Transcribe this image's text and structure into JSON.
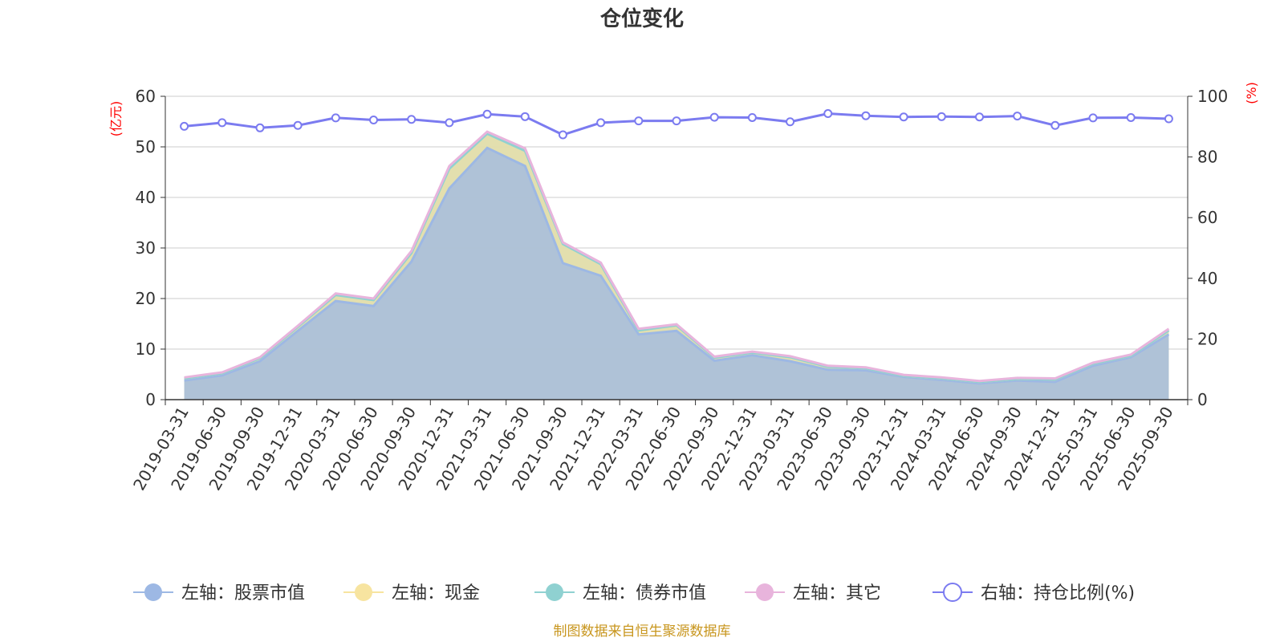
{
  "chart_data": {
    "type": "area",
    "title": "仓位变化",
    "x": [
      "2019-03-31",
      "2019-06-30",
      "2019-09-30",
      "2019-12-31",
      "2020-03-31",
      "2020-06-30",
      "2020-09-30",
      "2020-12-31",
      "2021-03-31",
      "2021-06-30",
      "2021-09-30",
      "2021-12-31",
      "2022-03-31",
      "2022-06-30",
      "2022-09-30",
      "2022-12-31",
      "2023-03-31",
      "2023-06-30",
      "2023-09-30",
      "2023-12-31",
      "2024-03-31",
      "2024-06-30",
      "2024-09-30",
      "2024-12-31",
      "2025-03-31",
      "2025-06-30",
      "2025-09-30"
    ],
    "left_axis": {
      "unit_label": "(亿元)",
      "ylim": [
        0,
        60
      ],
      "ticks": [
        "0",
        "10",
        "20",
        "30",
        "40",
        "50",
        "60"
      ]
    },
    "right_axis": {
      "unit_label": "(%)",
      "ylim": [
        0,
        100
      ],
      "ticks": [
        "0",
        "20",
        "40",
        "60",
        "80",
        "100"
      ]
    },
    "series": [
      {
        "name": "左轴：股票市值",
        "axis": "left",
        "type": "area",
        "stack": true,
        "color": "#9db8e4",
        "values": [
          3.8,
          4.8,
          7.6,
          13.6,
          19.5,
          18.5,
          27.3,
          41.8,
          49.8,
          46.2,
          27.0,
          24.5,
          12.9,
          13.6,
          7.7,
          8.8,
          7.6,
          5.9,
          5.8,
          4.5,
          3.9,
          3.2,
          3.8,
          3.5,
          6.7,
          8.4,
          12.9
        ]
      },
      {
        "name": "左轴：现金",
        "axis": "left",
        "type": "area",
        "stack": true,
        "color": "#f7e4a0",
        "values": [
          0.4,
          0.4,
          0.6,
          0.8,
          1.2,
          1.2,
          1.7,
          3.9,
          2.8,
          3.0,
          3.8,
          2.3,
          0.8,
          1.1,
          0.6,
          0.5,
          0.8,
          0.6,
          0.4,
          0.2,
          0.3,
          0.3,
          0.3,
          0.5,
          0.4,
          0.3,
          0.8
        ]
      },
      {
        "name": "左轴：债券市值",
        "axis": "left",
        "type": "area",
        "stack": true,
        "color": "#8fd1d1",
        "values": [
          0,
          0,
          0,
          0,
          0,
          0,
          0,
          0,
          0,
          0,
          0,
          0,
          0,
          0,
          0,
          0,
          0,
          0,
          0,
          0,
          0,
          0,
          0,
          0,
          0,
          0,
          0
        ]
      },
      {
        "name": "左轴：其它",
        "axis": "left",
        "type": "area",
        "stack": true,
        "color": "#e8b4dc",
        "values": [
          0.2,
          0.2,
          0.2,
          0.2,
          0.3,
          0.3,
          0.4,
          0.5,
          0.4,
          0.5,
          0.3,
          0.3,
          0.3,
          0.2,
          0.2,
          0.2,
          0.2,
          0.2,
          0.2,
          0.2,
          0.2,
          0.2,
          0.2,
          0.2,
          0.2,
          0.2,
          0.3
        ]
      },
      {
        "name": "右轴：持仓比例(%)",
        "axis": "right",
        "type": "line",
        "color": "#7b7bf0",
        "values": [
          90.1,
          91.3,
          89.6,
          90.4,
          92.9,
          92.2,
          92.4,
          91.3,
          94.1,
          93.3,
          87.3,
          91.3,
          91.9,
          91.9,
          93.1,
          93.0,
          91.6,
          94.3,
          93.6,
          93.2,
          93.3,
          93.2,
          93.5,
          90.4,
          92.9,
          93.0,
          92.6
        ]
      }
    ],
    "legend_position": "bottom",
    "grid": true
  },
  "source_text": "制图数据来自恒生聚源数据库"
}
